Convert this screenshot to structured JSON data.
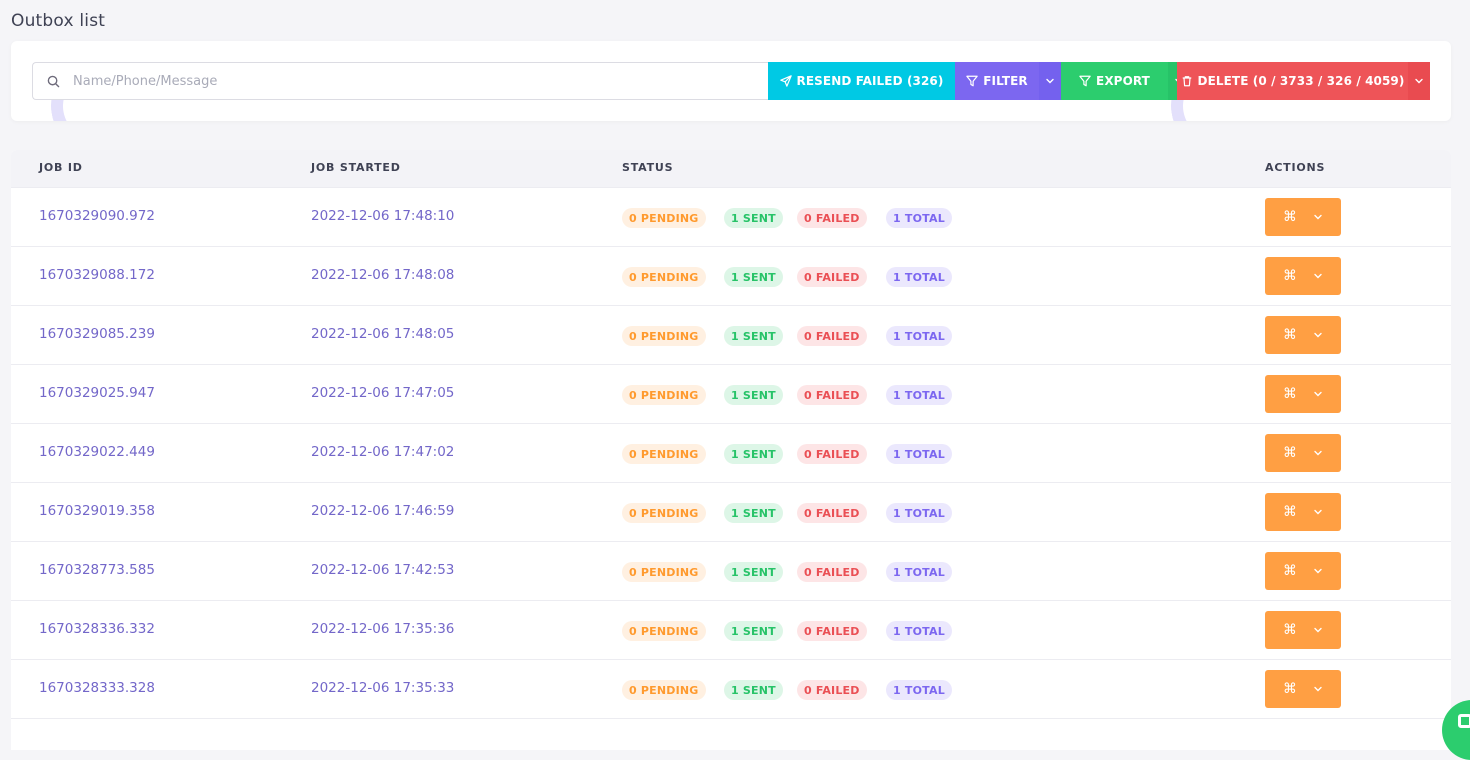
{
  "page": {
    "title": "Outbox list"
  },
  "toolbar": {
    "search_placeholder": "Name/Phone/Message",
    "search_value": "",
    "resend_label": "RESEND FAILED (326)",
    "filter_label": "FILTER",
    "export_label": "EXPORT",
    "delete_label": "DELETE (0 / 3733 / 326 / 4059)"
  },
  "colors": {
    "resend": "#00c9e4",
    "filter": "#7c67f0",
    "export": "#2ccd6e",
    "delete": "#ee5458",
    "action": "#ff9f43",
    "link": "#7367c9"
  },
  "table": {
    "headers": {
      "job_id": "JOB ID",
      "job_started": "JOB STARTED",
      "status": "STATUS",
      "actions": "ACTIONS"
    },
    "rows": [
      {
        "job_id": "1670329090.972",
        "started": "2022-12-06 17:48:10",
        "pending": "0 PENDING",
        "sent": "1 SENT",
        "failed": "0 FAILED",
        "total": "1 TOTAL"
      },
      {
        "job_id": "1670329088.172",
        "started": "2022-12-06 17:48:08",
        "pending": "0 PENDING",
        "sent": "1 SENT",
        "failed": "0 FAILED",
        "total": "1 TOTAL"
      },
      {
        "job_id": "1670329085.239",
        "started": "2022-12-06 17:48:05",
        "pending": "0 PENDING",
        "sent": "1 SENT",
        "failed": "0 FAILED",
        "total": "1 TOTAL"
      },
      {
        "job_id": "1670329025.947",
        "started": "2022-12-06 17:47:05",
        "pending": "0 PENDING",
        "sent": "1 SENT",
        "failed": "0 FAILED",
        "total": "1 TOTAL"
      },
      {
        "job_id": "1670329022.449",
        "started": "2022-12-06 17:47:02",
        "pending": "0 PENDING",
        "sent": "1 SENT",
        "failed": "0 FAILED",
        "total": "1 TOTAL"
      },
      {
        "job_id": "1670329019.358",
        "started": "2022-12-06 17:46:59",
        "pending": "0 PENDING",
        "sent": "1 SENT",
        "failed": "0 FAILED",
        "total": "1 TOTAL"
      },
      {
        "job_id": "1670328773.585",
        "started": "2022-12-06 17:42:53",
        "pending": "0 PENDING",
        "sent": "1 SENT",
        "failed": "0 FAILED",
        "total": "1 TOTAL"
      },
      {
        "job_id": "1670328336.332",
        "started": "2022-12-06 17:35:36",
        "pending": "0 PENDING",
        "sent": "1 SENT",
        "failed": "0 FAILED",
        "total": "1 TOTAL"
      },
      {
        "job_id": "1670328333.328",
        "started": "2022-12-06 17:35:33",
        "pending": "0 PENDING",
        "sent": "1 SENT",
        "failed": "0 FAILED",
        "total": "1 TOTAL"
      }
    ],
    "action_icon": "command-icon"
  }
}
